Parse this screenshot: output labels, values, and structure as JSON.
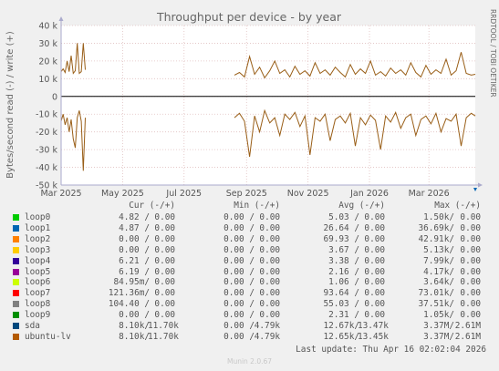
{
  "chart_data": {
    "type": "line",
    "title": "Throughput per device - by year",
    "ylabel": "Bytes/second read (-) / write (+)",
    "side_label": "RRDTOOL / TOBI OETIKER",
    "ylim": [
      -50000,
      40000
    ],
    "yticks": [
      40000,
      30000,
      20000,
      10000,
      0,
      -10000,
      -20000,
      -30000,
      -40000,
      -50000
    ],
    "ytick_labels": [
      "40 k",
      "30 k",
      "20 k",
      "10 k",
      "0",
      "-10 k",
      "-20 k",
      "-30 k",
      "-40 k",
      "-50 k"
    ],
    "x_start": "2025-03-01",
    "x_end": "2026-04-16",
    "xticks": [
      "2025-03-01",
      "2025-05-01",
      "2025-07-01",
      "2025-09-01",
      "2025-11-01",
      "2026-01-01",
      "2026-03-01"
    ],
    "xtick_labels": [
      "Mar 2025",
      "May 2025",
      "Jul 2025",
      "Sep 2025",
      "Nov 2025",
      "Jan 2026",
      "Mar 2026"
    ],
    "grid": true,
    "series": [
      {
        "name": "ubuntu-lv",
        "color": "#995e17",
        "segments": [
          {
            "write": [
              [
                "2025-03-01",
                14000
              ],
              [
                "2025-03-03",
                15500
              ],
              [
                "2025-03-05",
                13500
              ],
              [
                "2025-03-07",
                20000
              ],
              [
                "2025-03-09",
                14000
              ],
              [
                "2025-03-11",
                23000
              ],
              [
                "2025-03-13",
                13000
              ],
              [
                "2025-03-15",
                14500
              ],
              [
                "2025-03-17",
                30000
              ],
              [
                "2025-03-19",
                13000
              ],
              [
                "2025-03-21",
                14000
              ],
              [
                "2025-03-23",
                30000
              ],
              [
                "2025-03-25",
                15000
              ]
            ],
            "read": [
              [
                "2025-03-01",
                -14000
              ],
              [
                "2025-03-03",
                -10000
              ],
              [
                "2025-03-05",
                -16000
              ],
              [
                "2025-03-07",
                -12000
              ],
              [
                "2025-03-09",
                -20000
              ],
              [
                "2025-03-11",
                -13000
              ],
              [
                "2025-03-13",
                -24000
              ],
              [
                "2025-03-15",
                -29000
              ],
              [
                "2025-03-17",
                -12000
              ],
              [
                "2025-03-19",
                -8000
              ],
              [
                "2025-03-21",
                -14000
              ],
              [
                "2025-03-23",
                -42000
              ],
              [
                "2025-03-25",
                -12000
              ]
            ]
          },
          {
            "write": [
              [
                "2025-08-20",
                12000
              ],
              [
                "2025-08-25",
                13500
              ],
              [
                "2025-08-30",
                11000
              ],
              [
                "2025-09-04",
                22500
              ],
              [
                "2025-09-09",
                12500
              ],
              [
                "2025-09-14",
                16500
              ],
              [
                "2025-09-19",
                10500
              ],
              [
                "2025-09-24",
                14500
              ],
              [
                "2025-09-29",
                20000
              ],
              [
                "2025-10-04",
                13000
              ],
              [
                "2025-10-09",
                15000
              ],
              [
                "2025-10-14",
                11000
              ],
              [
                "2025-10-19",
                17000
              ],
              [
                "2025-10-24",
                12500
              ],
              [
                "2025-10-29",
                14500
              ],
              [
                "2025-11-03",
                11500
              ],
              [
                "2025-11-08",
                19000
              ],
              [
                "2025-11-13",
                13000
              ],
              [
                "2025-11-18",
                15000
              ],
              [
                "2025-11-23",
                12000
              ],
              [
                "2025-11-28",
                16500
              ],
              [
                "2025-12-03",
                13500
              ],
              [
                "2025-12-08",
                11000
              ],
              [
                "2025-12-13",
                18000
              ],
              [
                "2025-12-18",
                12500
              ],
              [
                "2025-12-23",
                15500
              ],
              [
                "2025-12-28",
                13000
              ],
              [
                "2026-01-02",
                20000
              ],
              [
                "2026-01-07",
                12000
              ],
              [
                "2026-01-12",
                14000
              ],
              [
                "2026-01-17",
                11500
              ],
              [
                "2026-01-22",
                16000
              ],
              [
                "2026-01-27",
                13000
              ],
              [
                "2026-02-01",
                15000
              ],
              [
                "2026-02-06",
                12000
              ],
              [
                "2026-02-11",
                19000
              ],
              [
                "2026-02-16",
                13500
              ],
              [
                "2026-02-21",
                11000
              ],
              [
                "2026-02-26",
                17500
              ],
              [
                "2026-03-03",
                12500
              ],
              [
                "2026-03-08",
                15000
              ],
              [
                "2026-03-13",
                13000
              ],
              [
                "2026-03-18",
                21000
              ],
              [
                "2026-03-23",
                12000
              ],
              [
                "2026-03-28",
                14500
              ],
              [
                "2026-04-02",
                25000
              ],
              [
                "2026-04-07",
                13000
              ],
              [
                "2026-04-12",
                12000
              ],
              [
                "2026-04-16",
                12500
              ]
            ],
            "read": [
              [
                "2025-08-20",
                -12000
              ],
              [
                "2025-08-25",
                -9500
              ],
              [
                "2025-08-30",
                -14000
              ],
              [
                "2025-09-04",
                -34000
              ],
              [
                "2025-09-09",
                -11000
              ],
              [
                "2025-09-14",
                -20000
              ],
              [
                "2025-09-19",
                -8000
              ],
              [
                "2025-09-24",
                -15000
              ],
              [
                "2025-09-29",
                -12000
              ],
              [
                "2025-10-04",
                -22000
              ],
              [
                "2025-10-09",
                -10000
              ],
              [
                "2025-10-14",
                -13000
              ],
              [
                "2025-10-19",
                -9000
              ],
              [
                "2025-10-24",
                -17000
              ],
              [
                "2025-10-29",
                -11000
              ],
              [
                "2025-11-03",
                -33000
              ],
              [
                "2025-11-08",
                -12000
              ],
              [
                "2025-11-13",
                -14000
              ],
              [
                "2025-11-18",
                -10000
              ],
              [
                "2025-11-23",
                -25000
              ],
              [
                "2025-11-28",
                -13000
              ],
              [
                "2025-12-03",
                -11000
              ],
              [
                "2025-12-08",
                -15000
              ],
              [
                "2025-12-13",
                -9500
              ],
              [
                "2025-12-18",
                -28000
              ],
              [
                "2025-12-23",
                -12000
              ],
              [
                "2025-12-28",
                -16000
              ],
              [
                "2026-01-02",
                -10500
              ],
              [
                "2026-01-07",
                -13500
              ],
              [
                "2026-01-12",
                -30000
              ],
              [
                "2026-01-17",
                -11000
              ],
              [
                "2026-01-22",
                -14500
              ],
              [
                "2026-01-27",
                -9000
              ],
              [
                "2026-02-01",
                -18000
              ],
              [
                "2026-02-06",
                -12000
              ],
              [
                "2026-02-11",
                -10000
              ],
              [
                "2026-02-16",
                -22000
              ],
              [
                "2026-02-21",
                -13000
              ],
              [
                "2026-02-26",
                -11000
              ],
              [
                "2026-03-03",
                -15500
              ],
              [
                "2026-03-08",
                -9500
              ],
              [
                "2026-03-13",
                -20000
              ],
              [
                "2026-03-18",
                -12500
              ],
              [
                "2026-03-23",
                -14000
              ],
              [
                "2026-03-28",
                -10000
              ],
              [
                "2026-04-02",
                -28000
              ],
              [
                "2026-04-07",
                -12000
              ],
              [
                "2026-04-12",
                -9500
              ],
              [
                "2026-04-16",
                -11000
              ]
            ]
          }
        ]
      }
    ],
    "marker_color": "#0066b3"
  },
  "legend": {
    "headers": {
      "cur": "Cur (-/+)",
      "min": "Min (-/+)",
      "avg": "Avg (-/+)",
      "max": "Max (-/+)"
    },
    "rows": [
      {
        "name": "loop0",
        "color": "#00cc00",
        "cur_r": "4.82 /",
        "cur_w": "0.00",
        "min_r": "0.00 /",
        "min_w": "0.00",
        "avg_r": "5.03 /",
        "avg_w": "0.00",
        "max_r": "1.50k/",
        "max_w": "0.00"
      },
      {
        "name": "loop1",
        "color": "#0066b3",
        "cur_r": "4.87 /",
        "cur_w": "0.00",
        "min_r": "0.00 /",
        "min_w": "0.00",
        "avg_r": "26.64 /",
        "avg_w": "0.00",
        "max_r": "36.69k/",
        "max_w": "0.00"
      },
      {
        "name": "loop2",
        "color": "#ff8000",
        "cur_r": "0.00 /",
        "cur_w": "0.00",
        "min_r": "0.00 /",
        "min_w": "0.00",
        "avg_r": "69.93 /",
        "avg_w": "0.00",
        "max_r": "42.91k/",
        "max_w": "0.00"
      },
      {
        "name": "loop3",
        "color": "#ffcc00",
        "cur_r": "0.00 /",
        "cur_w": "0.00",
        "min_r": "0.00 /",
        "min_w": "0.00",
        "avg_r": "3.67 /",
        "avg_w": "0.00",
        "max_r": "5.13k/",
        "max_w": "0.00"
      },
      {
        "name": "loop4",
        "color": "#330099",
        "cur_r": "6.21 /",
        "cur_w": "0.00",
        "min_r": "0.00 /",
        "min_w": "0.00",
        "avg_r": "3.38 /",
        "avg_w": "0.00",
        "max_r": "7.99k/",
        "max_w": "0.00"
      },
      {
        "name": "loop5",
        "color": "#990099",
        "cur_r": "6.19 /",
        "cur_w": "0.00",
        "min_r": "0.00 /",
        "min_w": "0.00",
        "avg_r": "2.16 /",
        "avg_w": "0.00",
        "max_r": "4.17k/",
        "max_w": "0.00"
      },
      {
        "name": "loop6",
        "color": "#ccff00",
        "cur_r": "84.95m/",
        "cur_w": "0.00",
        "min_r": "0.00 /",
        "min_w": "0.00",
        "avg_r": "1.06 /",
        "avg_w": "0.00",
        "max_r": "3.64k/",
        "max_w": "0.00"
      },
      {
        "name": "loop7",
        "color": "#ff0000",
        "cur_r": "121.36m/",
        "cur_w": "0.00",
        "min_r": "0.00 /",
        "min_w": "0.00",
        "avg_r": "93.64 /",
        "avg_w": "0.00",
        "max_r": "73.01k/",
        "max_w": "0.00"
      },
      {
        "name": "loop8",
        "color": "#808080",
        "cur_r": "104.40 /",
        "cur_w": "0.00",
        "min_r": "0.00 /",
        "min_w": "0.00",
        "avg_r": "55.03 /",
        "avg_w": "0.00",
        "max_r": "37.51k/",
        "max_w": "0.00"
      },
      {
        "name": "loop9",
        "color": "#008f00",
        "cur_r": "0.00 /",
        "cur_w": "0.00",
        "min_r": "0.00 /",
        "min_w": "0.00",
        "avg_r": "2.31 /",
        "avg_w": "0.00",
        "max_r": "1.05k/",
        "max_w": "0.00"
      },
      {
        "name": "sda",
        "color": "#00487d",
        "cur_r": "8.10k/",
        "cur_w": "11.70k",
        "min_r": "0.00 /",
        "min_w": "4.79k",
        "avg_r": "12.67k/",
        "avg_w": "13.47k",
        "max_r": "3.37M/",
        "max_w": "2.61M"
      },
      {
        "name": "ubuntu-lv",
        "color": "#b35a00",
        "cur_r": "8.10k/",
        "cur_w": "11.70k",
        "min_r": "0.00 /",
        "min_w": "4.79k",
        "avg_r": "12.65k/",
        "avg_w": "13.45k",
        "max_r": "3.37M/",
        "max_w": "2.61M"
      }
    ]
  },
  "last_update": "Last update: Thu Apr 16 02:02:04 2026",
  "footer": "Munin 2.0.67"
}
